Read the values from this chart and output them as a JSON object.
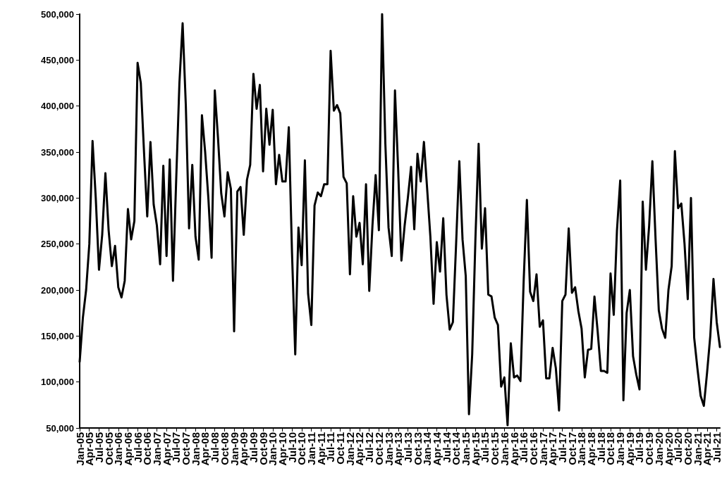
{
  "chart_data": {
    "type": "line",
    "categories": [
      "Jan-05",
      null,
      null,
      "Apr-05",
      null,
      null,
      "Jul-05",
      null,
      null,
      "Oct-05",
      null,
      null,
      "Jan-06",
      null,
      null,
      "Apr-06",
      null,
      null,
      "Jul-06",
      null,
      null,
      "Oct-06",
      null,
      null,
      "Jan-07",
      null,
      null,
      "Apr-07",
      null,
      null,
      "Jul-07",
      null,
      null,
      "Oct-07",
      null,
      null,
      "Jan-08",
      null,
      null,
      "Apr-08",
      null,
      null,
      "Jul-08",
      null,
      null,
      "Oct-08",
      null,
      null,
      "Jan-09",
      null,
      null,
      "Apr-09",
      null,
      null,
      "Jul-09",
      null,
      null,
      "Oct-09",
      null,
      null,
      "Jan-10",
      null,
      null,
      "Apr-10",
      null,
      null,
      "Jul-10",
      null,
      null,
      "Oct-10",
      null,
      null,
      "Jan-11",
      null,
      null,
      "Apr-11",
      null,
      null,
      "Jul-11",
      null,
      null,
      "Oct-11",
      null,
      null,
      "Jan-12",
      null,
      null,
      "Apr-12",
      null,
      null,
      "Jul-12",
      null,
      null,
      "Oct-12",
      null,
      null,
      "Jan-13",
      null,
      null,
      "Apr-13",
      null,
      null,
      "Jul-13",
      null,
      null,
      "Oct-13",
      null,
      null,
      "Jan-14",
      null,
      null,
      "Apr-14",
      null,
      null,
      "Jul-14",
      null,
      null,
      "Oct-14",
      null,
      null,
      "Jan-15",
      null,
      null,
      "Apr-15",
      null,
      null,
      "Jul-15",
      null,
      null,
      "Oct-15",
      null,
      null,
      "Jan-16",
      null,
      null,
      "Apr-16",
      null,
      null,
      "Jul-16",
      null,
      null,
      "Oct-16",
      null,
      null,
      "Jan-17",
      null,
      null,
      "Apr-17",
      null,
      null,
      "Jul-17",
      null,
      null,
      "Oct-17",
      null,
      null,
      "Jan-18",
      null,
      null,
      "Apr-18",
      null,
      null,
      "Jul-18",
      null,
      null,
      "Oct-18",
      null,
      null,
      "Jan-19",
      null,
      null,
      "Apr-19",
      null,
      null,
      "Jul-19",
      null,
      null,
      "Oct-19",
      null,
      null,
      "Jan-20",
      null,
      null,
      "Apr-20",
      null,
      null,
      "Jul-20",
      null,
      null,
      "Oct-20",
      null,
      null,
      "Jan-21",
      null,
      null,
      "Apr-21",
      null,
      null,
      "Jul-21",
      null
    ],
    "series": [
      {
        "color": "#000000",
        "values": [
          122000,
          170000,
          200000,
          250000,
          362000,
          300000,
          222000,
          260000,
          327000,
          265000,
          226000,
          248000,
          203000,
          192000,
          210000,
          288000,
          255000,
          275000,
          447000,
          425000,
          350000,
          280000,
          361000,
          293000,
          270000,
          228000,
          335000,
          237000,
          342000,
          210000,
          320000,
          425000,
          490000,
          400000,
          267000,
          336000,
          258000,
          233000,
          390000,
          350000,
          300000,
          235000,
          417000,
          365000,
          305000,
          280000,
          328000,
          310000,
          155000,
          307000,
          312000,
          260000,
          320000,
          336000,
          435000,
          397000,
          423000,
          329000,
          397000,
          358000,
          396000,
          315000,
          347000,
          318000,
          318000,
          377000,
          240000,
          130000,
          268000,
          227000,
          341000,
          196000,
          162000,
          292000,
          306000,
          302000,
          315000,
          315000,
          460000,
          395000,
          401000,
          392000,
          323000,
          316000,
          217000,
          302000,
          258000,
          273000,
          228000,
          315000,
          199000,
          270000,
          325000,
          265000,
          500000,
          360000,
          268000,
          237000,
          417000,
          330000,
          232000,
          270000,
          300000,
          334000,
          266000,
          348000,
          318000,
          361000,
          310000,
          258000,
          185000,
          252000,
          220000,
          278000,
          195000,
          157000,
          165000,
          250000,
          340000,
          255000,
          215000,
          65000,
          130000,
          255000,
          359000,
          245000,
          289000,
          195000,
          193000,
          170000,
          162000,
          95000,
          105000,
          53000,
          142000,
          105000,
          107000,
          101000,
          210000,
          298000,
          198000,
          188000,
          217000,
          160000,
          167000,
          104000,
          104000,
          137000,
          115000,
          69000,
          188000,
          195000,
          267000,
          197000,
          203000,
          177000,
          158000,
          105000,
          135000,
          136000,
          193000,
          155000,
          112000,
          112000,
          110000,
          218000,
          173000,
          265000,
          319000,
          80000,
          175000,
          200000,
          128000,
          108000,
          92000,
          296000,
          222000,
          270000,
          340000,
          255000,
          178000,
          158000,
          148000,
          200000,
          226000,
          351000,
          289000,
          294000,
          250000,
          190000,
          300000,
          148000,
          115000,
          85000,
          74000,
          110000,
          150000,
          212000,
          165000,
          138000
        ]
      }
    ],
    "ylim": [
      50000,
      500000
    ],
    "yticks": [
      {
        "value": 50000,
        "label": "50,000"
      },
      {
        "value": 100000,
        "label": "100,000"
      },
      {
        "value": 150000,
        "label": "150,000"
      },
      {
        "value": 200000,
        "label": "200,000"
      },
      {
        "value": 250000,
        "label": "250,000"
      },
      {
        "value": 300000,
        "label": "300,000"
      },
      {
        "value": 350000,
        "label": "350,000"
      },
      {
        "value": 400000,
        "label": "400,000"
      },
      {
        "value": 450000,
        "label": "450,000"
      },
      {
        "value": 500000,
        "label": "500,000"
      }
    ],
    "grid": false,
    "marker": "none",
    "line_style": "solid"
  }
}
